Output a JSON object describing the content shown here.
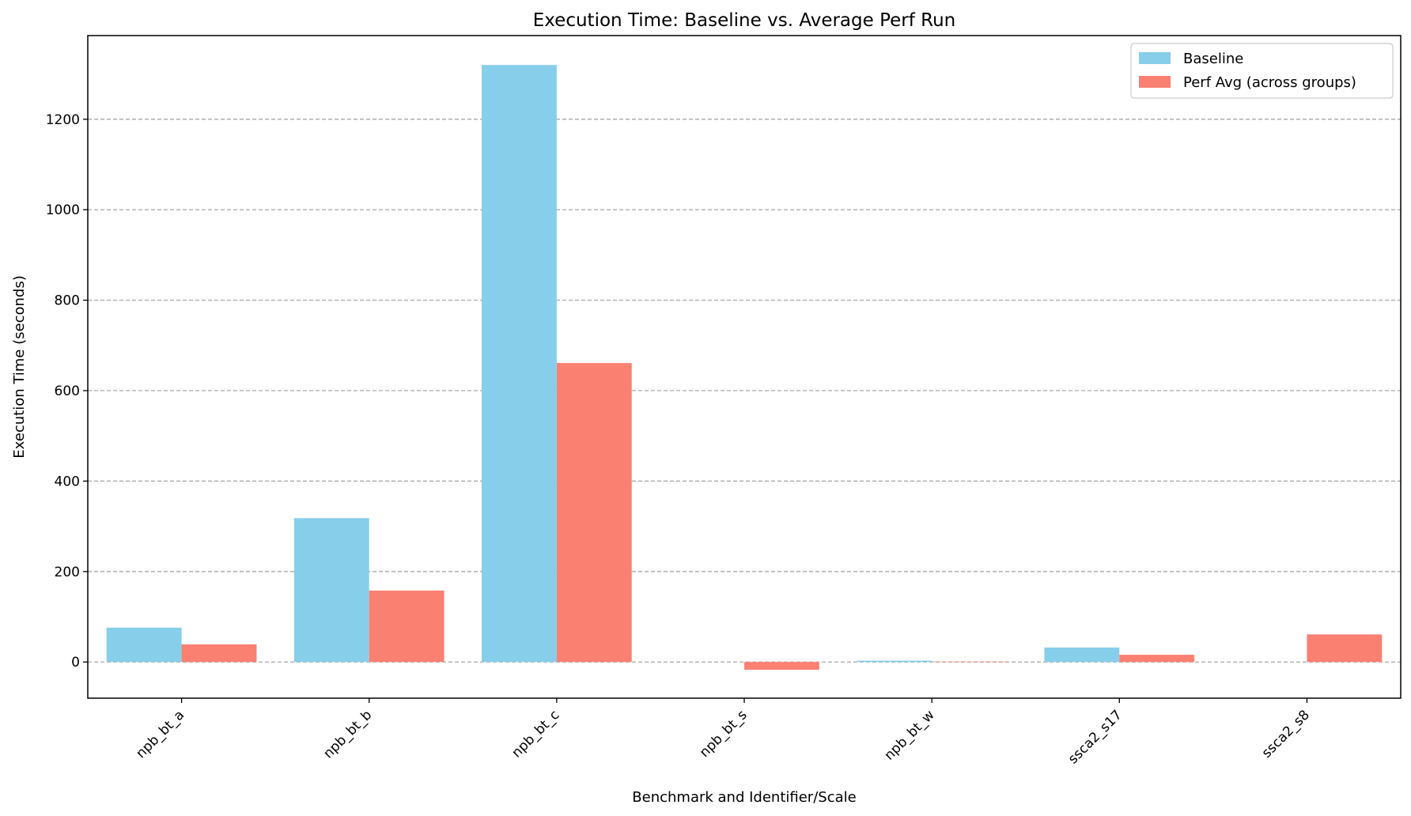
{
  "colors": {
    "baseline": "#87ceeb",
    "perf_avg": "#fa8072",
    "grid": "#a8a8a8"
  },
  "chart_data": {
    "type": "bar",
    "title": "Execution Time: Baseline vs. Average Perf Run",
    "xlabel": "Benchmark and Identifier/Scale",
    "ylabel": "Execution Time (seconds)",
    "ylim": [
      -80,
      1385
    ],
    "yticks": [
      0,
      200,
      400,
      600,
      800,
      1000,
      1200
    ],
    "grid": "y, dashed",
    "legend_position": "top-right",
    "categories": [
      "npb_bt_a",
      "npb_bt_b",
      "npb_bt_c",
      "npb_bt_s",
      "npb_bt_w",
      "ssca2_s17",
      "ssca2_s8"
    ],
    "series": [
      {
        "name": "Baseline",
        "color": "#87ceeb",
        "values": [
          76,
          318,
          1320,
          0,
          3,
          32,
          0
        ]
      },
      {
        "name": "Perf Avg (across groups)",
        "color": "#fa8072",
        "values": [
          39,
          158,
          661,
          -17,
          1,
          16,
          61
        ]
      }
    ]
  }
}
